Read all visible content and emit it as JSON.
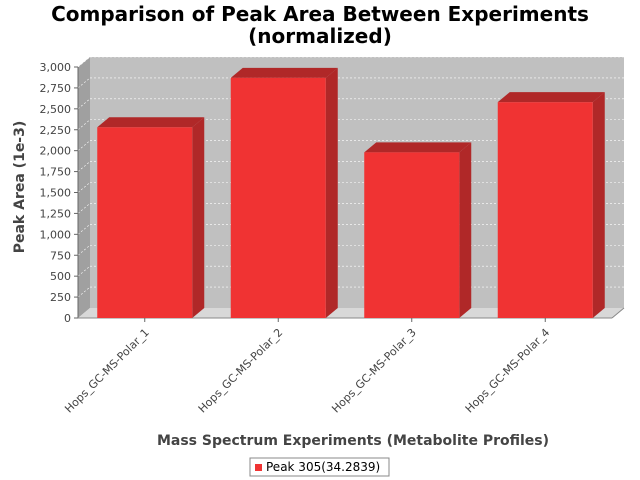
{
  "colors": {
    "bar_front": "#F03333",
    "bar_top": "#B02828",
    "bar_side": "#B02828",
    "plot_bg": "#C0C0C0",
    "plot_wall": "#A0A0A0",
    "floor": "#D8D8D8",
    "grid": "#FFFFFF"
  },
  "chart_data": {
    "type": "bar",
    "title": "Comparison of Peak Area Between Experiments",
    "title_line2": "(normalized)",
    "xlabel": "Mass Spectrum Experiments (Metabolite Profiles)",
    "ylabel": "Peak Area (1e-3)",
    "categories": [
      "Hops_GC-MS-Polar_1",
      "Hops_GC-MS-Polar_2",
      "Hops_GC-MS-Polar_3",
      "Hops_GC-MS-Polar_4"
    ],
    "series": [
      {
        "name": "Peak 305(34.2839)",
        "values": [
          2280,
          2870,
          1980,
          2580
        ]
      }
    ],
    "ylim": [
      0,
      3000
    ],
    "yticks": [
      "0",
      "250",
      "500",
      "750",
      "1,000",
      "1,250",
      "1,500",
      "1,750",
      "2,000",
      "2,250",
      "2,500",
      "2,750",
      "3,000"
    ],
    "ytick_values": [
      0,
      250,
      500,
      750,
      1000,
      1250,
      1500,
      1750,
      2000,
      2250,
      2500,
      2750,
      3000
    ],
    "grid": true,
    "legend": "bottom"
  }
}
